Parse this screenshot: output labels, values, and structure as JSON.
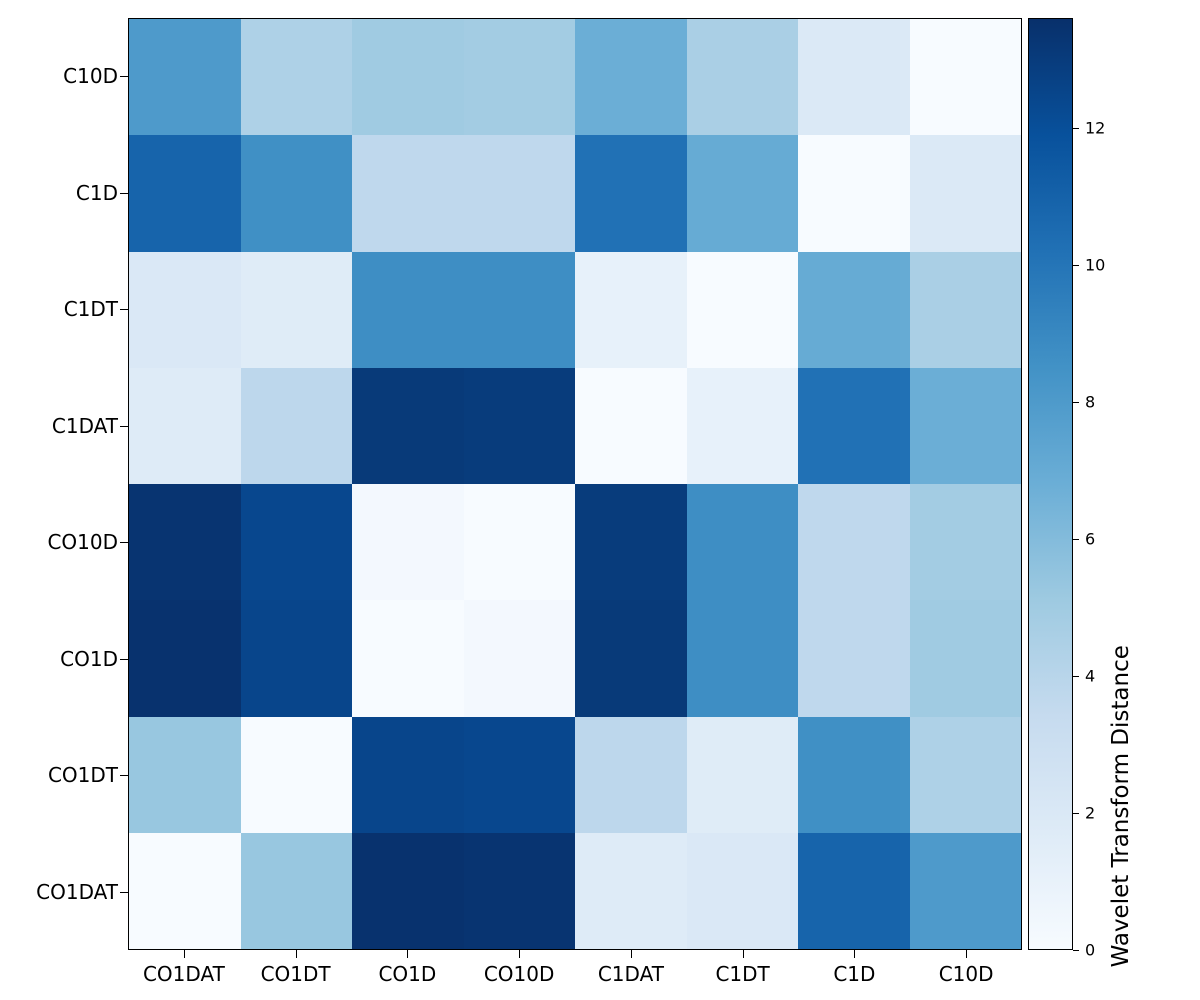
{
  "chart_data": {
    "type": "heatmap",
    "title": "",
    "colorbar_label": "Wavelet Transform Distance",
    "x_categories": [
      "CO1DAT",
      "CO1DT",
      "CO1D",
      "CO10D",
      "C1DAT",
      "C1DT",
      "C1D",
      "C10D"
    ],
    "y_categories": [
      "C10D",
      "C1D",
      "C1DT",
      "C1DAT",
      "CO10D",
      "CO1D",
      "CO1DT",
      "CO1DAT"
    ],
    "vmin": 0,
    "vmax": 13.6,
    "colorbar_ticks": [
      0,
      2,
      4,
      6,
      8,
      10,
      12
    ],
    "colormap": {
      "name": "Blues",
      "stops": [
        "#f7fbff",
        "#deebf7",
        "#c6dbef",
        "#9ecae1",
        "#6baed6",
        "#4292c6",
        "#2171b5",
        "#08519c",
        "#08306b"
      ]
    },
    "grid": false,
    "legend_position": "right-colorbar",
    "matrix": [
      [
        8.0,
        4.4,
        5.0,
        4.9,
        6.8,
        4.6,
        1.9,
        0.0
      ],
      [
        10.9,
        8.6,
        3.7,
        3.7,
        10.2,
        7.0,
        0.0,
        1.9
      ],
      [
        2.0,
        1.6,
        8.7,
        8.7,
        1.1,
        0.0,
        7.0,
        4.6
      ],
      [
        1.7,
        3.8,
        13.1,
        13.0,
        0.0,
        1.1,
        10.2,
        6.8
      ],
      [
        13.4,
        12.4,
        0.3,
        0.0,
        13.0,
        8.7,
        3.7,
        4.9
      ],
      [
        13.5,
        12.5,
        0.0,
        0.3,
        13.1,
        8.7,
        3.7,
        5.0
      ],
      [
        5.3,
        0.0,
        12.5,
        12.4,
        3.8,
        1.6,
        8.6,
        4.4
      ],
      [
        0.0,
        5.3,
        13.5,
        13.4,
        1.7,
        2.0,
        10.9,
        8.0
      ]
    ]
  }
}
